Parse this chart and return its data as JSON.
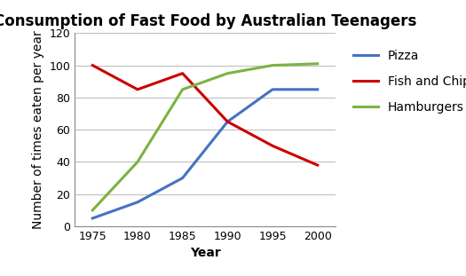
{
  "title": "Consumption of Fast Food by Australian Teenagers",
  "xlabel": "Year",
  "ylabel": "Number of times eaten per year",
  "years": [
    1975,
    1980,
    1985,
    1990,
    1995,
    2000
  ],
  "series": {
    "Pizza": {
      "values": [
        5,
        15,
        30,
        65,
        85,
        85
      ],
      "color": "#4472C4"
    },
    "Fish and Chips": {
      "values": [
        100,
        85,
        95,
        65,
        50,
        38
      ],
      "color": "#CC0000"
    },
    "Hamburgers": {
      "values": [
        10,
        40,
        85,
        95,
        100,
        101
      ],
      "color": "#7CB342"
    }
  },
  "ylim": [
    0,
    120
  ],
  "xlim": [
    1973,
    2002
  ],
  "yticks": [
    0,
    20,
    40,
    60,
    80,
    100,
    120
  ],
  "xticks": [
    1975,
    1980,
    1985,
    1990,
    1995,
    2000
  ],
  "legend_labels": [
    "Pizza",
    "Fish and Chips",
    "Hamburgers"
  ],
  "background_color": "#FFFFFF",
  "grid_color": "#C0C0C0",
  "title_fontsize": 12,
  "axis_label_fontsize": 10,
  "tick_fontsize": 9,
  "legend_fontsize": 10,
  "line_width": 2.2
}
